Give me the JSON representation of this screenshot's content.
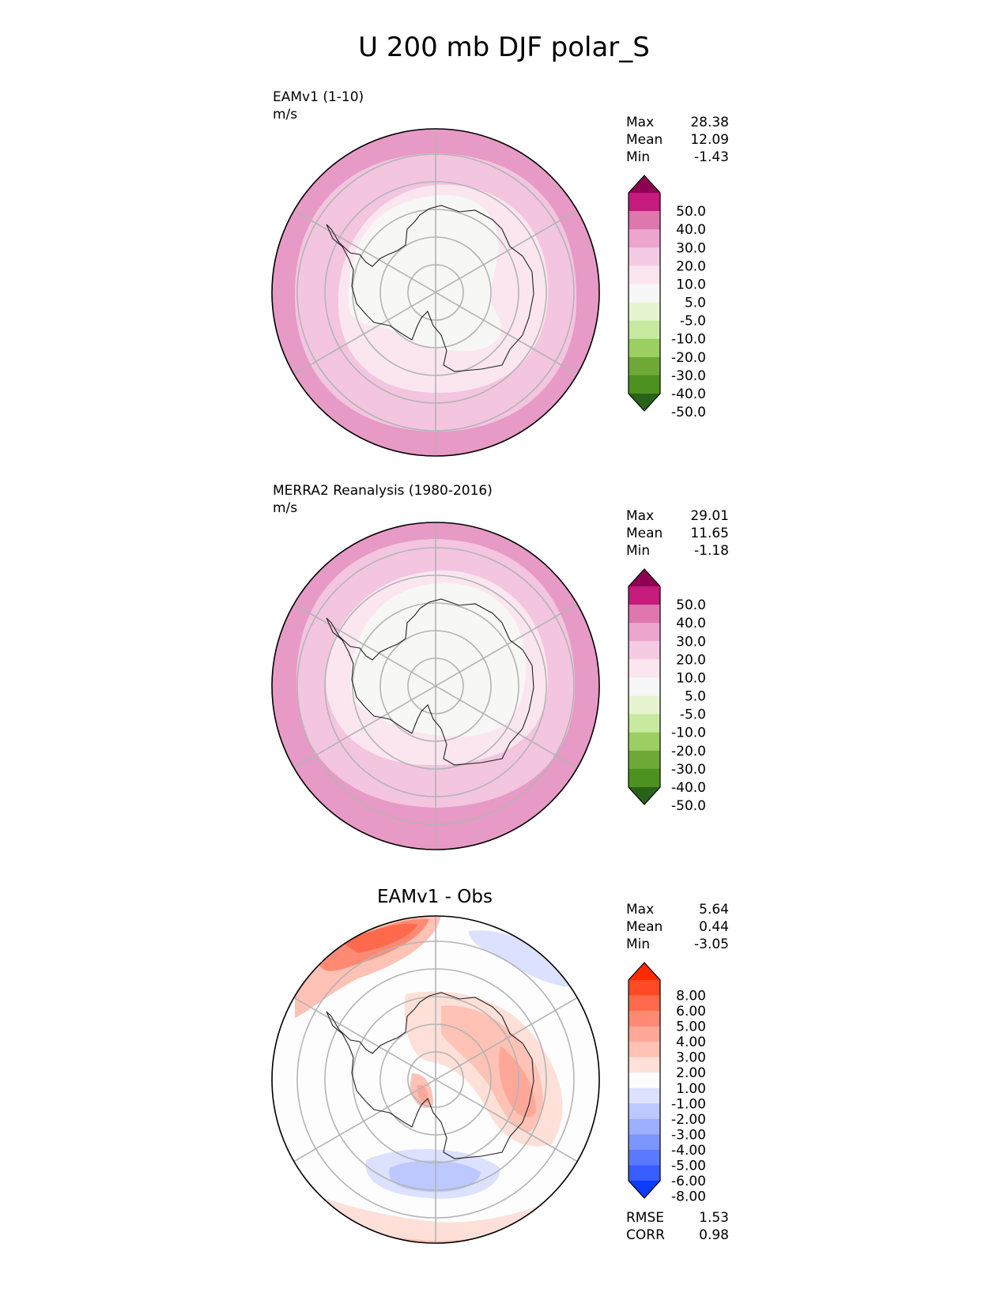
{
  "title": "U 200 mb DJF polar_S",
  "panels": [
    {
      "model_name": "EAMv1 (1-10)",
      "units": "m/s",
      "stats": [
        {
          "label": "Max",
          "value": "28.38"
        },
        {
          "label": "Mean",
          "value": "12.09"
        },
        {
          "label": "Min",
          "value": "-1.43"
        }
      ],
      "colorbar": {
        "labels": [
          "50.0",
          "40.0",
          "30.0",
          "20.0",
          "10.0",
          "5.0",
          "-5.0",
          "-10.0",
          "-20.0",
          "-30.0",
          "-40.0",
          "-50.0"
        ],
        "colors": [
          "#8e0152",
          "#c51b7d",
          "#de77ae",
          "#eca5cd",
          "#f5cbe3",
          "#fbe6f0",
          "#f7f7f7",
          "#e6f5d0",
          "#c8e9a0",
          "#9ccf62",
          "#6ea938",
          "#4d9221",
          "#276419"
        ]
      },
      "map_fill": [
        "#e79ac5",
        "#f3c5df",
        "#fbe6f0",
        "#f7f7f6"
      ]
    },
    {
      "model_name": "MERRA2 Reanalysis (1980-2016)",
      "units": "m/s",
      "stats": [
        {
          "label": "Max",
          "value": "29.01"
        },
        {
          "label": "Mean",
          "value": "11.65"
        },
        {
          "label": "Min",
          "value": "-1.18"
        }
      ],
      "colorbar": {
        "labels": [
          "50.0",
          "40.0",
          "30.0",
          "20.0",
          "10.0",
          "5.0",
          "-5.0",
          "-10.0",
          "-20.0",
          "-30.0",
          "-40.0",
          "-50.0"
        ],
        "colors": [
          "#8e0152",
          "#c51b7d",
          "#de77ae",
          "#eca5cd",
          "#f5cbe3",
          "#fbe6f0",
          "#f7f7f7",
          "#e6f5d0",
          "#c8e9a0",
          "#9ccf62",
          "#6ea938",
          "#4d9221",
          "#276419"
        ]
      },
      "map_fill": [
        "#e79ac5",
        "#f3c5df",
        "#fbe6f0",
        "#f7f7f6"
      ]
    },
    {
      "diff_title": "EAMv1 - Obs",
      "stats": [
        {
          "label": "Max",
          "value": "5.64"
        },
        {
          "label": "Mean",
          "value": "0.44"
        },
        {
          "label": "Min",
          "value": "-3.05"
        }
      ],
      "colorbar": {
        "labels": [
          "8.00",
          "6.00",
          "5.00",
          "4.00",
          "3.00",
          "2.00",
          "1.00",
          "-1.00",
          "-2.00",
          "-3.00",
          "-4.00",
          "-5.00",
          "-6.00",
          "-8.00"
        ],
        "colors": [
          "#ff2a00",
          "#ff4a26",
          "#ff6a4d",
          "#ff8a73",
          "#ffa899",
          "#ffc2b5",
          "#ffe0d8",
          "#fdfdfd",
          "#dbe1ff",
          "#bcc8ff",
          "#9dafff",
          "#7d95ff",
          "#5b79ff",
          "#3a5dff",
          "#0b3cff"
        ]
      },
      "metrics": [
        {
          "label": "RMSE",
          "value": "1.53"
        },
        {
          "label": "CORR",
          "value": "0.98"
        }
      ]
    }
  ]
}
